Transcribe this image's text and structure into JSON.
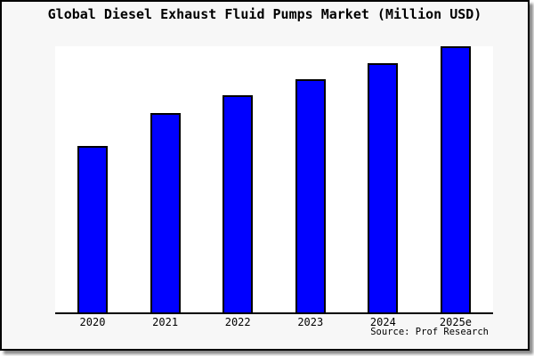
{
  "window": {
    "frame_background": "#f7f7f7",
    "frame_border_color": "#000000",
    "shadow_color": "#8a8a8a",
    "plot_background": "#ffffff"
  },
  "chart_data": {
    "type": "bar",
    "title": "Global Diesel Exhaust Fluid Pumps Market (Million USD)",
    "categories": [
      "2020",
      "2021",
      "2022",
      "2023",
      "2024",
      "2025e"
    ],
    "values": [
      62.7,
      74.9,
      81.5,
      87.6,
      93.6,
      100
    ],
    "value_scale": "relative height, tallest bar (2025e) = 100; no numeric y-axis shown",
    "xlabel": "",
    "ylabel": "",
    "ylim": [
      0,
      100
    ],
    "gridlines": false,
    "legend": false,
    "bar_color": "#0000ff",
    "bar_border_color": "#000000",
    "source_label": "Source: Prof Research"
  }
}
